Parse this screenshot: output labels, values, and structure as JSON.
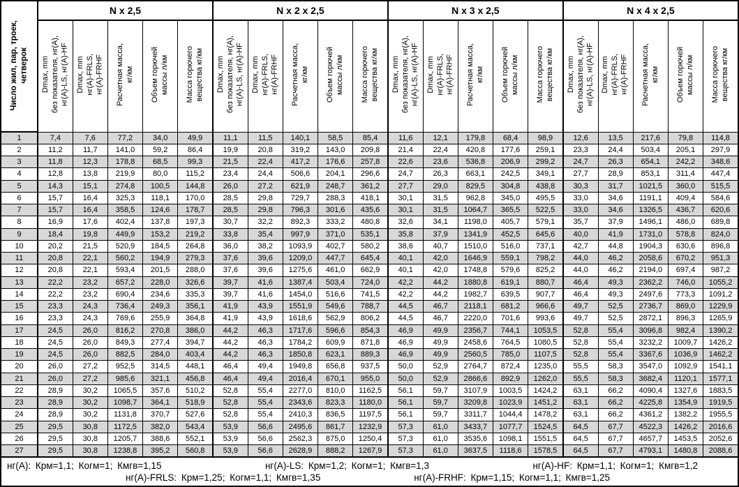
{
  "header": {
    "corner": "Число жил, пар, троек,\nчетверок",
    "groups": [
      "N x 2,5",
      "N x 2 x 2,5",
      "N x 3 x 2,5",
      "N x 4 x 2,5"
    ],
    "subcolumns": [
      "Dmax, mm\nбез показателя, нг(А),\nнг(А)-LS, нг(А)-HF",
      "Dmax, mm\nнг(А)-FRLS,\nнг(А)-FRHF",
      "Расчетная масса,\nкг/км",
      "Объем горючей\nмассы л/км",
      "Масса горючего\nвещества кг/км"
    ]
  },
  "rows": [
    {
      "n": "1",
      "cells": [
        "7,4",
        "7,6",
        "77,2",
        "34,0",
        "49,9",
        "11,1",
        "11,5",
        "140,1",
        "58,5",
        "85,4",
        "11,6",
        "12,1",
        "179,8",
        "68,4",
        "98,9",
        "12,6",
        "13,5",
        "217,6",
        "79,8",
        "114,8"
      ]
    },
    {
      "n": "2",
      "cells": [
        "11,2",
        "11,7",
        "141,0",
        "59,2",
        "86,4",
        "19,9",
        "20,8",
        "319,2",
        "143,0",
        "209,8",
        "21,4",
        "22,4",
        "420,8",
        "177,6",
        "259,1",
        "23,3",
        "24,4",
        "503,4",
        "205,1",
        "297,9"
      ]
    },
    {
      "n": "3",
      "cells": [
        "11,8",
        "12,3",
        "178,8",
        "68,5",
        "99,3",
        "21,5",
        "22,4",
        "417,2",
        "176,6",
        "257,8",
        "22,6",
        "23,6",
        "536,8",
        "206,9",
        "299,2",
        "24,7",
        "26,3",
        "654,1",
        "242,2",
        "348,6"
      ]
    },
    {
      "n": "4",
      "cells": [
        "12,8",
        "13,8",
        "219,9",
        "80,0",
        "115,2",
        "23,4",
        "24,4",
        "506,6",
        "204,1",
        "296,6",
        "24,7",
        "26,3",
        "663,1",
        "242,5",
        "349,1",
        "27,7",
        "28,9",
        "853,1",
        "311,4",
        "447,4"
      ]
    },
    {
      "n": "5",
      "cells": [
        "14,3",
        "15,1",
        "274,8",
        "100,5",
        "144,8",
        "26,0",
        "27,2",
        "621,9",
        "248,7",
        "361,2",
        "27,7",
        "29,0",
        "829,5",
        "304,8",
        "438,8",
        "30,3",
        "31,7",
        "1021,5",
        "360,0",
        "515,5"
      ]
    },
    {
      "n": "6",
      "cells": [
        "15,7",
        "16,4",
        "325,3",
        "118,1",
        "170,0",
        "28,5",
        "29,8",
        "729,7",
        "288,3",
        "418,1",
        "30,1",
        "31,5",
        "962,8",
        "345,0",
        "495,5",
        "33,0",
        "34,6",
        "1191,1",
        "409,4",
        "584,6"
      ]
    },
    {
      "n": "7",
      "cells": [
        "15,7",
        "16,4",
        "358,5",
        "124,6",
        "178,7",
        "28,5",
        "29,8",
        "796,3",
        "301,6",
        "435,6",
        "30,1",
        "31,5",
        "1064,7",
        "365,5",
        "522,5",
        "33,0",
        "34,6",
        "1326,5",
        "436,7",
        "620,6"
      ]
    },
    {
      "n": "8",
      "cells": [
        "16,9",
        "17,6",
        "402,4",
        "137,8",
        "197,3",
        "30,7",
        "32,2",
        "892,3",
        "333,2",
        "480,8",
        "32,6",
        "34,1",
        "1198,0",
        "405,7",
        "579,1",
        "35,7",
        "37,9",
        "1496,1",
        "486,0",
        "689,8"
      ]
    },
    {
      "n": "9",
      "cells": [
        "18,4",
        "19,8",
        "449,9",
        "153,2",
        "219,2",
        "33,8",
        "35,4",
        "997,9",
        "371,0",
        "535,1",
        "35,8",
        "37,9",
        "1341,9",
        "452,5",
        "645,6",
        "40,0",
        "41,9",
        "1731,0",
        "578,8",
        "824,0"
      ]
    },
    {
      "n": "10",
      "cells": [
        "20,2",
        "21,5",
        "520,9",
        "184,5",
        "264,8",
        "36,0",
        "38,2",
        "1093,9",
        "402,7",
        "580,2",
        "38,6",
        "40,7",
        "1510,0",
        "516,0",
        "737,1",
        "42,7",
        "44,8",
        "1904,3",
        "630,6",
        "896,8"
      ]
    },
    {
      "n": "11",
      "cells": [
        "20,8",
        "22,1",
        "560,2",
        "194,9",
        "279,3",
        "37,6",
        "39,6",
        "1209,0",
        "447,7",
        "645,4",
        "40,1",
        "42,0",
        "1646,9",
        "559,1",
        "798,2",
        "44,0",
        "46,2",
        "2058,6",
        "670,2",
        "951,3"
      ]
    },
    {
      "n": "12",
      "cells": [
        "20,8",
        "22,1",
        "593,4",
        "201,5",
        "288,0",
        "37,6",
        "39,6",
        "1275,6",
        "461,0",
        "662,9",
        "40,1",
        "42,0",
        "1748,8",
        "579,6",
        "825,2",
        "44,0",
        "46,2",
        "2194,0",
        "697,4",
        "987,2"
      ]
    },
    {
      "n": "13",
      "cells": [
        "22,2",
        "23,2",
        "657,2",
        "228,0",
        "326,6",
        "39,7",
        "41,6",
        "1387,4",
        "503,4",
        "724,0",
        "42,2",
        "44,2",
        "1880,8",
        "619,1",
        "880,7",
        "46,4",
        "49,3",
        "2362,2",
        "746,0",
        "1055,2"
      ]
    },
    {
      "n": "14",
      "cells": [
        "22,2",
        "23,2",
        "690,4",
        "234,6",
        "335,3",
        "39,7",
        "41,6",
        "1454,0",
        "516,6",
        "741,5",
        "42,2",
        "44,2",
        "1982,7",
        "639,5",
        "907,7",
        "46,4",
        "49,3",
        "2497,6",
        "773,3",
        "1091,2"
      ]
    },
    {
      "n": "15",
      "cells": [
        "23,3",
        "24,3",
        "736,4",
        "249,3",
        "356,1",
        "41,9",
        "43,9",
        "1551,9",
        "549,6",
        "788,7",
        "44,5",
        "46,7",
        "2118,1",
        "681,2",
        "966,6",
        "49,7",
        "52,5",
        "2736,7",
        "869,0",
        "1229,9"
      ]
    },
    {
      "n": "16",
      "cells": [
        "23,3",
        "24,3",
        "769,6",
        "255,9",
        "364,8",
        "41,9",
        "43,9",
        "1618,6",
        "562,9",
        "806,2",
        "44,5",
        "46,7",
        "2220,0",
        "701,6",
        "993,6",
        "49,7",
        "52,5",
        "2872,1",
        "896,3",
        "1265,9"
      ]
    },
    {
      "n": "17",
      "cells": [
        "24,5",
        "26,0",
        "816,2",
        "270,8",
        "386,0",
        "44,2",
        "46,3",
        "1717,6",
        "596,6",
        "854,3",
        "46,9",
        "49,9",
        "2356,7",
        "744,1",
        "1053,5",
        "52,8",
        "55,4",
        "3096,8",
        "982,4",
        "1390,2"
      ]
    },
    {
      "n": "18",
      "cells": [
        "24,5",
        "26,0",
        "849,3",
        "277,4",
        "394,7",
        "44,2",
        "46,3",
        "1784,2",
        "609,9",
        "871,8",
        "46,9",
        "49,9",
        "2458,6",
        "764,5",
        "1080,5",
        "52,8",
        "55,4",
        "3232,2",
        "1009,7",
        "1426,2"
      ]
    },
    {
      "n": "19",
      "cells": [
        "24,5",
        "26,0",
        "882,5",
        "284,0",
        "403,4",
        "44,2",
        "46,3",
        "1850,8",
        "623,1",
        "889,3",
        "46,9",
        "49,9",
        "2560,5",
        "785,0",
        "1107,5",
        "52,8",
        "55,4",
        "3367,6",
        "1036,9",
        "1462,2"
      ]
    },
    {
      "n": "20",
      "cells": [
        "26,0",
        "27,2",
        "952,5",
        "314,5",
        "448,1",
        "46,4",
        "49,4",
        "1949,8",
        "656,8",
        "937,5",
        "50,0",
        "52,9",
        "2764,7",
        "872,4",
        "1235,0",
        "55,5",
        "58,3",
        "3547,0",
        "1092,9",
        "1541,1"
      ]
    },
    {
      "n": "21",
      "cells": [
        "26,0",
        "27,2",
        "985,6",
        "321,1",
        "456,8",
        "46,4",
        "49,4",
        "2016,4",
        "670,1",
        "955,0",
        "50,0",
        "52,9",
        "2866,6",
        "892,9",
        "1262,0",
        "55,5",
        "58,3",
        "3682,4",
        "1120,1",
        "1577,1"
      ]
    },
    {
      "n": "22",
      "cells": [
        "28,9",
        "30,2",
        "1065,5",
        "357,6",
        "510,2",
        "52,8",
        "55,4",
        "2277,0",
        "810,0",
        "1162,5",
        "56,1",
        "59,7",
        "3107,9",
        "1003,5",
        "1424,2",
        "63,1",
        "66,2",
        "4090,4",
        "1327,6",
        "1883,5"
      ]
    },
    {
      "n": "23",
      "cells": [
        "28,9",
        "30,2",
        "1098,7",
        "364,1",
        "518,9",
        "52,8",
        "55,4",
        "2343,6",
        "823,3",
        "1180,0",
        "56,1",
        "59,7",
        "3209,8",
        "1023,9",
        "1451,2",
        "63,1",
        "66,2",
        "4225,8",
        "1354,9",
        "1919,5"
      ]
    },
    {
      "n": "24",
      "cells": [
        "28,9",
        "30,2",
        "1131,8",
        "370,7",
        "527,6",
        "52,8",
        "55,4",
        "2410,3",
        "836,5",
        "1197,5",
        "56,1",
        "59,7",
        "3311,7",
        "1044,4",
        "1478,2",
        "63,1",
        "66,2",
        "4361,2",
        "1382,2",
        "1955,5"
      ]
    },
    {
      "n": "25",
      "cells": [
        "29,5",
        "30,8",
        "1172,5",
        "382,0",
        "543,4",
        "53,9",
        "56,6",
        "2495,6",
        "861,7",
        "1232,9",
        "57,3",
        "61,0",
        "3433,7",
        "1077,7",
        "1524,5",
        "64,5",
        "67,7",
        "4522,3",
        "1426,2",
        "2016,6"
      ]
    },
    {
      "n": "26",
      "cells": [
        "29,5",
        "30,8",
        "1205,7",
        "388,6",
        "552,1",
        "53,9",
        "56,6",
        "2562,3",
        "875,0",
        "1250,4",
        "57,3",
        "61,0",
        "3535,6",
        "1098,1",
        "1551,5",
        "64,5",
        "67,7",
        "4657,7",
        "1453,5",
        "2052,6"
      ]
    },
    {
      "n": "27",
      "cells": [
        "29,5",
        "30,8",
        "1238,8",
        "395,2",
        "560,8",
        "53,9",
        "56,6",
        "2628,9",
        "888,2",
        "1267,9",
        "57,3",
        "61,0",
        "3637,5",
        "1118,6",
        "1578,5",
        "64,5",
        "67,7",
        "4793,1",
        "1480,8",
        "2088,6"
      ]
    }
  ],
  "footer": {
    "line1": [
      "нг(А): Крм=1,1; Когм=1; Кмгв=1,15",
      "нг(А)-LS: Крм=1,2; Когм=1; Кмгв=1,3",
      "нг(А)-HF: Крм=1,1; Когм=1; Кмгв=1,2"
    ],
    "line2": [
      "нг(А)-FRLS: Крм=1,25; Когм=1,1; Кмгв=1,35",
      "нг(А)-FRHF: Крм=1,15; Когм=1,1; Кмгв=1,25"
    ]
  },
  "colors": {
    "row_shade": "#d8d8d8",
    "border": "#000000",
    "background": "#ffffff"
  }
}
